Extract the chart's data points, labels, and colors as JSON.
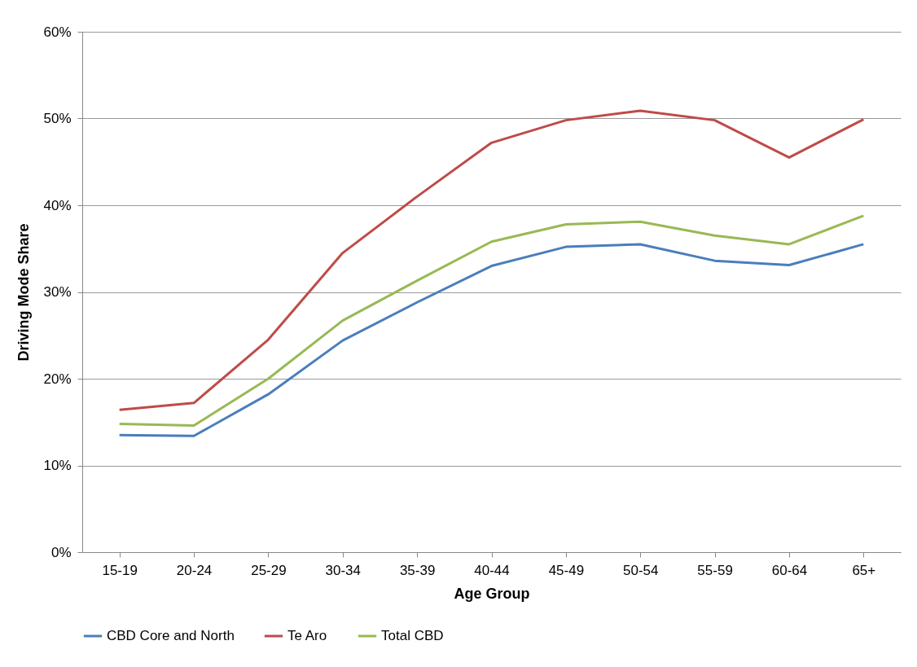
{
  "chart_data": {
    "type": "line",
    "xlabel": "Age Group",
    "ylabel": "Driving Mode Share",
    "categories": [
      "15-19",
      "20-24",
      "25-29",
      "30-34",
      "35-39",
      "40-44",
      "45-49",
      "50-54",
      "55-59",
      "60-64",
      "65+"
    ],
    "series": [
      {
        "name": "CBD Core and North",
        "color": "#4a7ebb",
        "values": [
          13.5,
          13.4,
          18.2,
          24.4,
          28.8,
          33.0,
          35.2,
          35.5,
          33.6,
          33.1,
          35.5
        ]
      },
      {
        "name": "Te Aro",
        "color": "#be4b48",
        "values": [
          16.4,
          17.2,
          24.5,
          34.5,
          41.0,
          47.2,
          49.8,
          50.9,
          49.8,
          45.5,
          49.9
        ]
      },
      {
        "name": "Total CBD",
        "color": "#98b954",
        "values": [
          14.8,
          14.6,
          20.0,
          26.7,
          31.3,
          35.8,
          37.8,
          38.1,
          36.5,
          35.5,
          38.8
        ]
      }
    ],
    "ylim": [
      0,
      60
    ],
    "yticks": [
      {
        "value": 0,
        "label": "0%"
      },
      {
        "value": 10,
        "label": "10%"
      },
      {
        "value": 20,
        "label": "20%"
      },
      {
        "value": 30,
        "label": "30%"
      },
      {
        "value": 40,
        "label": "40%"
      },
      {
        "value": 50,
        "label": "50%"
      },
      {
        "value": 60,
        "label": "60%"
      }
    ],
    "grid": "y",
    "legend": "bottom",
    "marker": "none",
    "line_style": "solid"
  }
}
